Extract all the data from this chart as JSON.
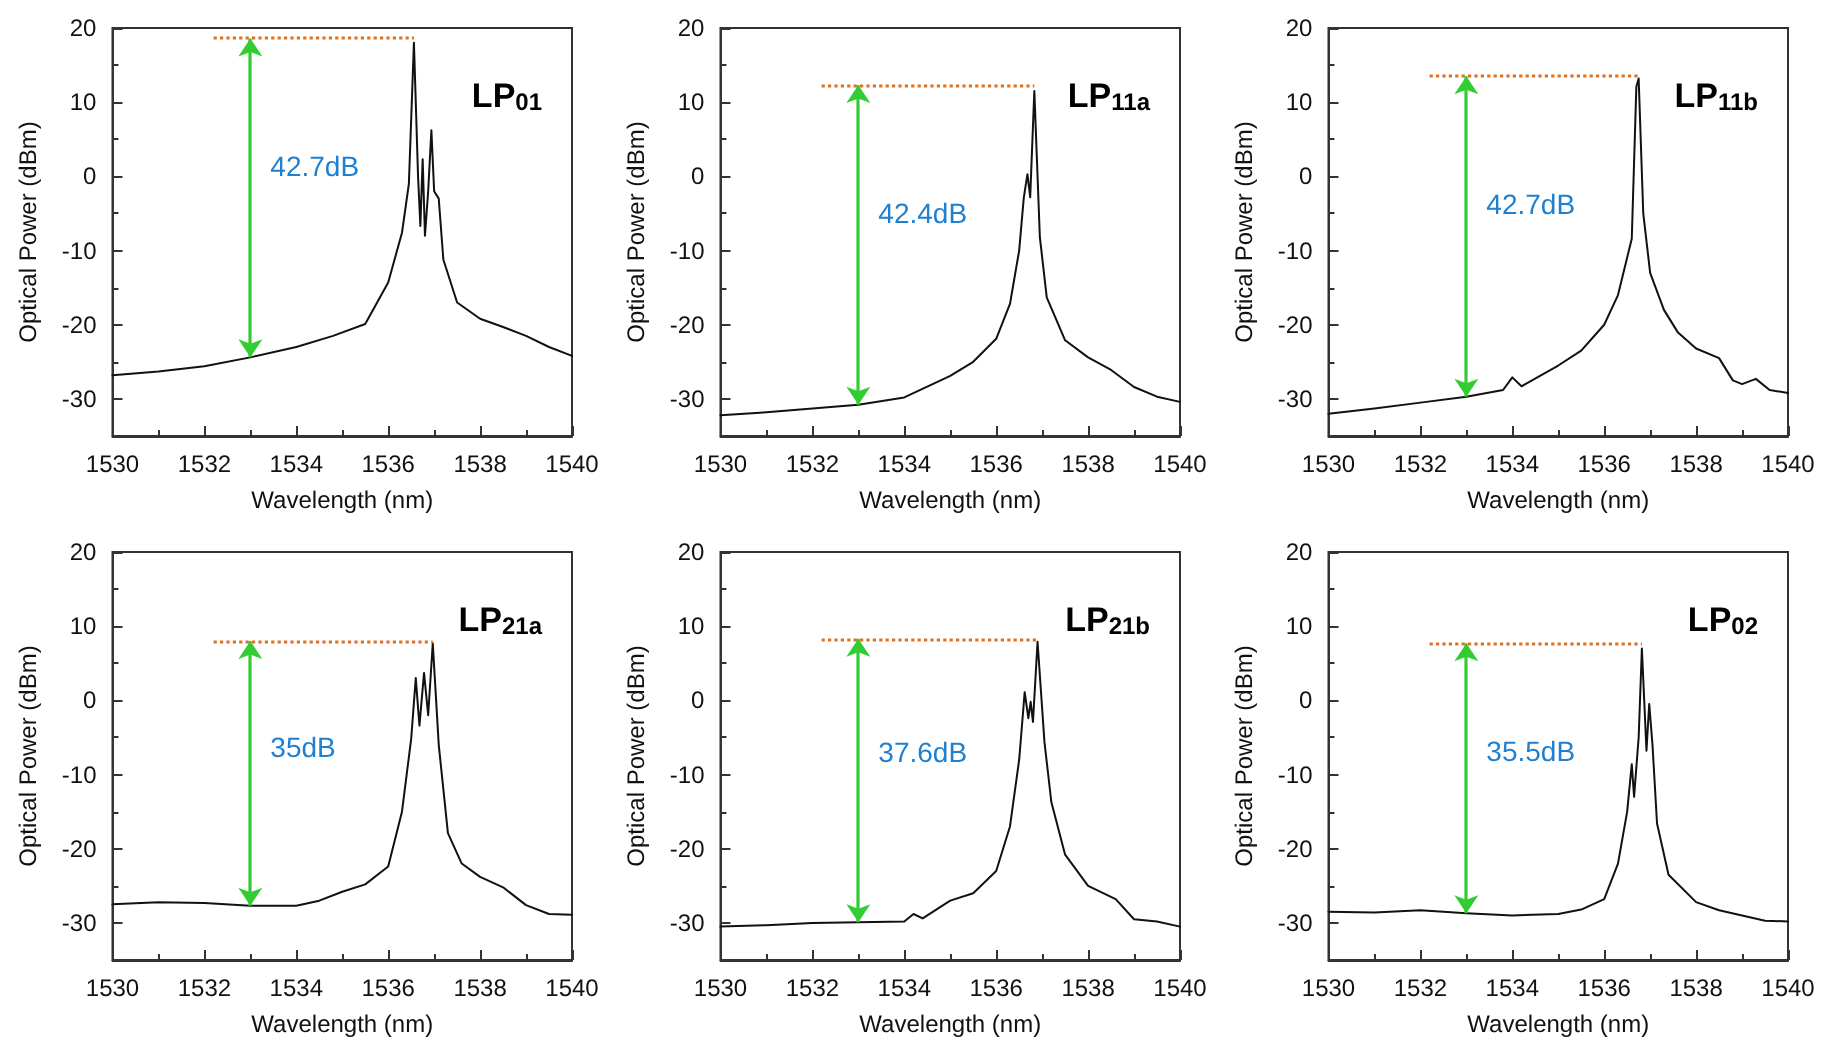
{
  "chart_data": [
    {
      "type": "line",
      "title": "LP$_{01}$",
      "xlabel": "Wavelength (nm)",
      "ylabel": "Optical Power (dBm)",
      "xlim": [
        1530,
        1540
      ],
      "xticks": [
        1530,
        1532,
        1534,
        1536,
        1538,
        1540
      ],
      "ylim": [
        -35,
        20
      ],
      "yticks": [
        -30,
        -20,
        -10,
        0,
        10,
        20
      ],
      "grid": false,
      "marker": "none",
      "series": [
        {
          "color": "#111111",
          "x": [
            1530,
            1531,
            1532,
            1533,
            1534,
            1534.8,
            1535.5,
            1536,
            1536.3,
            1536.45,
            1536.56,
            1536.65,
            1536.7,
            1536.75,
            1536.8,
            1536.87,
            1536.94,
            1537.0,
            1537.1,
            1537.2,
            1537.5,
            1538,
            1538.5,
            1539,
            1539.5,
            1540
          ],
          "values": [
            -26.8,
            -26.3,
            -25.6,
            -24.4,
            -23,
            -21.5,
            -19.9,
            -14.3,
            -7.6,
            -1,
            18,
            0,
            -6.7,
            2.3,
            -8,
            -2,
            6.2,
            -2,
            -3,
            -11.2,
            -17,
            -19.2,
            -20.3,
            -21.5,
            -23,
            -24.2
          ]
        }
      ],
      "ref_lines": [
        {
          "axis": "y",
          "value": 18.6,
          "color": "#e07020",
          "line_style": "dotted"
        }
      ],
      "annotations": [
        "42.7dB"
      ]
    },
    {
      "type": "line",
      "title": "LP$_{11a}$",
      "xlabel": "Wavelength (nm)",
      "ylabel": "Optical Power (dBm)",
      "xlim": [
        1530,
        1540
      ],
      "xticks": [
        1530,
        1532,
        1534,
        1536,
        1538,
        1540
      ],
      "ylim": [
        -35,
        20
      ],
      "yticks": [
        -30,
        -20,
        -10,
        0,
        10,
        20
      ],
      "grid": false,
      "marker": "none",
      "series": [
        {
          "color": "#111111",
          "x": [
            1530,
            1531,
            1532,
            1533,
            1534,
            1535,
            1535.5,
            1536,
            1536.3,
            1536.5,
            1536.6,
            1536.68,
            1536.74,
            1536.83,
            1536.95,
            1537.1,
            1537.5,
            1538,
            1538.5,
            1539,
            1539.5,
            1540
          ],
          "values": [
            -32.2,
            -31.8,
            -31.3,
            -30.8,
            -29.8,
            -26.9,
            -25,
            -21.9,
            -17.2,
            -10,
            -2.9,
            0.3,
            -2.8,
            11.5,
            -8.2,
            -16.3,
            -22.1,
            -24.4,
            -26.1,
            -28.4,
            -29.7,
            -30.4
          ]
        }
      ],
      "ref_lines": [
        {
          "axis": "y",
          "value": 12.3,
          "color": "#e07020",
          "line_style": "dotted"
        }
      ],
      "annotations": [
        "42.4dB"
      ]
    },
    {
      "type": "line",
      "title": "LP$_{11b}$",
      "xlabel": "Wavelength (nm)",
      "ylabel": "Optical Power (dBm)",
      "xlim": [
        1530,
        1540
      ],
      "xticks": [
        1530,
        1532,
        1534,
        1536,
        1538,
        1540
      ],
      "ylim": [
        -35,
        20
      ],
      "yticks": [
        -30,
        -20,
        -10,
        0,
        10,
        20
      ],
      "grid": false,
      "marker": "none",
      "series": [
        {
          "color": "#111111",
          "x": [
            1530,
            1531,
            1532,
            1533,
            1533.8,
            1534,
            1534.2,
            1535,
            1535.5,
            1536,
            1536.3,
            1536.6,
            1536.7,
            1536.75,
            1536.85,
            1537,
            1537.3,
            1537.6,
            1538,
            1538.5,
            1538.8,
            1539,
            1539.3,
            1539.6,
            1540
          ],
          "values": [
            -32,
            -31.3,
            -30.5,
            -29.7,
            -28.8,
            -27.1,
            -28.3,
            -25.5,
            -23.5,
            -20,
            -16,
            -8.4,
            12.1,
            13.2,
            -5,
            -13,
            -18,
            -21,
            -23.2,
            -24.5,
            -27.5,
            -28,
            -27.3,
            -28.8,
            -29.2
          ]
        }
      ],
      "ref_lines": [
        {
          "axis": "y",
          "value": 13.5,
          "color": "#e07020",
          "line_style": "dotted"
        }
      ],
      "annotations": [
        "42.7dB"
      ]
    },
    {
      "type": "line",
      "title": "LP$_{21a}$",
      "xlabel": "Wavelength (nm)",
      "ylabel": "Optical Power (dBm)",
      "xlim": [
        1530,
        1540
      ],
      "xticks": [
        1530,
        1532,
        1534,
        1536,
        1538,
        1540
      ],
      "ylim": [
        -35,
        20
      ],
      "yticks": [
        -30,
        -20,
        -10,
        0,
        10,
        20
      ],
      "grid": false,
      "marker": "none",
      "series": [
        {
          "color": "#111111",
          "x": [
            1530,
            1531,
            1532,
            1533,
            1534,
            1534.5,
            1535,
            1535.5,
            1536,
            1536.3,
            1536.5,
            1536.6,
            1536.68,
            1536.78,
            1536.87,
            1536.97,
            1537.1,
            1537.3,
            1537.6,
            1538,
            1538.5,
            1539,
            1539.5,
            1540
          ],
          "values": [
            -27.5,
            -27.2,
            -27.3,
            -27.7,
            -27.7,
            -27,
            -25.8,
            -24.8,
            -22.4,
            -15,
            -5.2,
            3,
            -3.4,
            3.7,
            -2,
            7.7,
            -6,
            -17.9,
            -22,
            -23.8,
            -25.2,
            -27.6,
            -28.8,
            -28.9
          ]
        }
      ],
      "ref_lines": [
        {
          "axis": "y",
          "value": 8,
          "color": "#e07020",
          "line_style": "dotted"
        }
      ],
      "annotations": [
        "35dB"
      ]
    },
    {
      "type": "line",
      "title": "LP$_{21b}$",
      "xlabel": "Wavelength (nm)",
      "ylabel": "Optical Power (dBm)",
      "xlim": [
        1530,
        1540
      ],
      "xticks": [
        1530,
        1532,
        1534,
        1536,
        1538,
        1540
      ],
      "ylim": [
        -35,
        20
      ],
      "yticks": [
        -30,
        -20,
        -10,
        0,
        10,
        20
      ],
      "grid": false,
      "marker": "none",
      "series": [
        {
          "color": "#111111",
          "x": [
            1530,
            1531,
            1532,
            1533,
            1534,
            1534.2,
            1534.4,
            1535,
            1535.5,
            1536,
            1536.3,
            1536.5,
            1536.62,
            1536.7,
            1536.75,
            1536.8,
            1536.9,
            1537.05,
            1537.2,
            1537.5,
            1538,
            1538.6,
            1539,
            1539.5,
            1540
          ],
          "values": [
            -30.5,
            -30.3,
            -30,
            -29.9,
            -29.8,
            -28.8,
            -29.4,
            -27,
            -26,
            -23,
            -17,
            -8,
            1.1,
            -2.4,
            -0.2,
            -2.9,
            7.9,
            -5.6,
            -13.7,
            -20.8,
            -25,
            -26.8,
            -29.5,
            -29.8,
            -30.5
          ]
        }
      ],
      "ref_lines": [
        {
          "axis": "y",
          "value": 8.3,
          "color": "#e07020",
          "line_style": "dotted"
        }
      ],
      "annotations": [
        "37.6dB"
      ]
    },
    {
      "type": "line",
      "title": "LP$_{02}$",
      "xlabel": "Wavelength (nm)",
      "ylabel": "Optical Power (dBm)",
      "xlim": [
        1530,
        1540
      ],
      "xticks": [
        1530,
        1532,
        1534,
        1536,
        1538,
        1540
      ],
      "ylim": [
        -35,
        20
      ],
      "yticks": [
        -30,
        -20,
        -10,
        0,
        10,
        20
      ],
      "grid": false,
      "marker": "none",
      "series": [
        {
          "color": "#111111",
          "x": [
            1530,
            1531,
            1532,
            1533,
            1534,
            1535,
            1535.5,
            1536,
            1536.3,
            1536.5,
            1536.6,
            1536.65,
            1536.75,
            1536.82,
            1536.92,
            1536.98,
            1537.05,
            1537.15,
            1537.4,
            1538,
            1538.5,
            1539,
            1539.5,
            1540
          ],
          "values": [
            -28.5,
            -28.6,
            -28.3,
            -28.7,
            -29,
            -28.8,
            -28.2,
            -26.8,
            -22,
            -15,
            -8.6,
            -13,
            -5,
            7,
            -6.8,
            -0.5,
            -5.9,
            -16.6,
            -23.5,
            -27.2,
            -28.3,
            -29,
            -29.7,
            -29.8
          ]
        }
      ],
      "ref_lines": [
        {
          "axis": "y",
          "value": 7.7,
          "color": "#e07020",
          "line_style": "dotted"
        }
      ],
      "annotations": [
        "35.5dB"
      ]
    }
  ]
}
